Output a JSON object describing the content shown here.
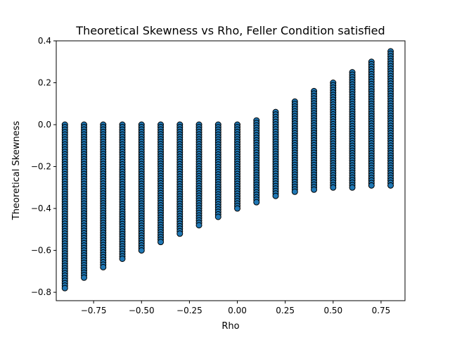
{
  "chart_data": {
    "type": "scatter",
    "title": "Theoretical Skewness vs Rho, Feller Condition satisfied",
    "xlabel": "Rho",
    "ylabel": "Theoretical Skewness",
    "xlim": [
      -0.945,
      0.875
    ],
    "ylim": [
      -0.84,
      0.4
    ],
    "xticks": [
      -0.75,
      -0.5,
      -0.25,
      0.0,
      0.25,
      0.5,
      0.75
    ],
    "xtick_labels": [
      "−0.75",
      "−0.50",
      "−0.25",
      "0.00",
      "0.25",
      "0.50",
      "0.75"
    ],
    "yticks": [
      -0.8,
      -0.6,
      -0.4,
      -0.2,
      0.0,
      0.2,
      0.4
    ],
    "ytick_labels": [
      "−0.8",
      "−0.6",
      "−0.4",
      "−0.2",
      "0.0",
      "0.2",
      "0.4"
    ],
    "grid": false,
    "legend": "none",
    "marker_color": "#1f77b4",
    "marker_edge_color": "#000000",
    "columns": [
      {
        "rho": -0.9,
        "min": -0.78,
        "max": 0.0
      },
      {
        "rho": -0.8,
        "min": -0.73,
        "max": 0.0
      },
      {
        "rho": -0.7,
        "min": -0.68,
        "max": 0.0
      },
      {
        "rho": -0.6,
        "min": -0.64,
        "max": 0.0
      },
      {
        "rho": -0.5,
        "min": -0.6,
        "max": 0.0
      },
      {
        "rho": -0.4,
        "min": -0.56,
        "max": 0.0
      },
      {
        "rho": -0.3,
        "min": -0.52,
        "max": 0.0
      },
      {
        "rho": -0.2,
        "min": -0.48,
        "max": 0.0
      },
      {
        "rho": -0.1,
        "min": -0.44,
        "max": 0.0
      },
      {
        "rho": 0.0,
        "min": -0.4,
        "max": 0.0
      },
      {
        "rho": 0.1,
        "min": -0.37,
        "max": 0.02
      },
      {
        "rho": 0.2,
        "min": -0.34,
        "max": 0.06
      },
      {
        "rho": 0.3,
        "min": -0.32,
        "max": 0.11
      },
      {
        "rho": 0.4,
        "min": -0.31,
        "max": 0.16
      },
      {
        "rho": 0.5,
        "min": -0.3,
        "max": 0.2
      },
      {
        "rho": 0.6,
        "min": -0.3,
        "max": 0.25
      },
      {
        "rho": 0.7,
        "min": -0.29,
        "max": 0.3
      },
      {
        "rho": 0.8,
        "min": -0.29,
        "max": 0.35
      }
    ]
  }
}
